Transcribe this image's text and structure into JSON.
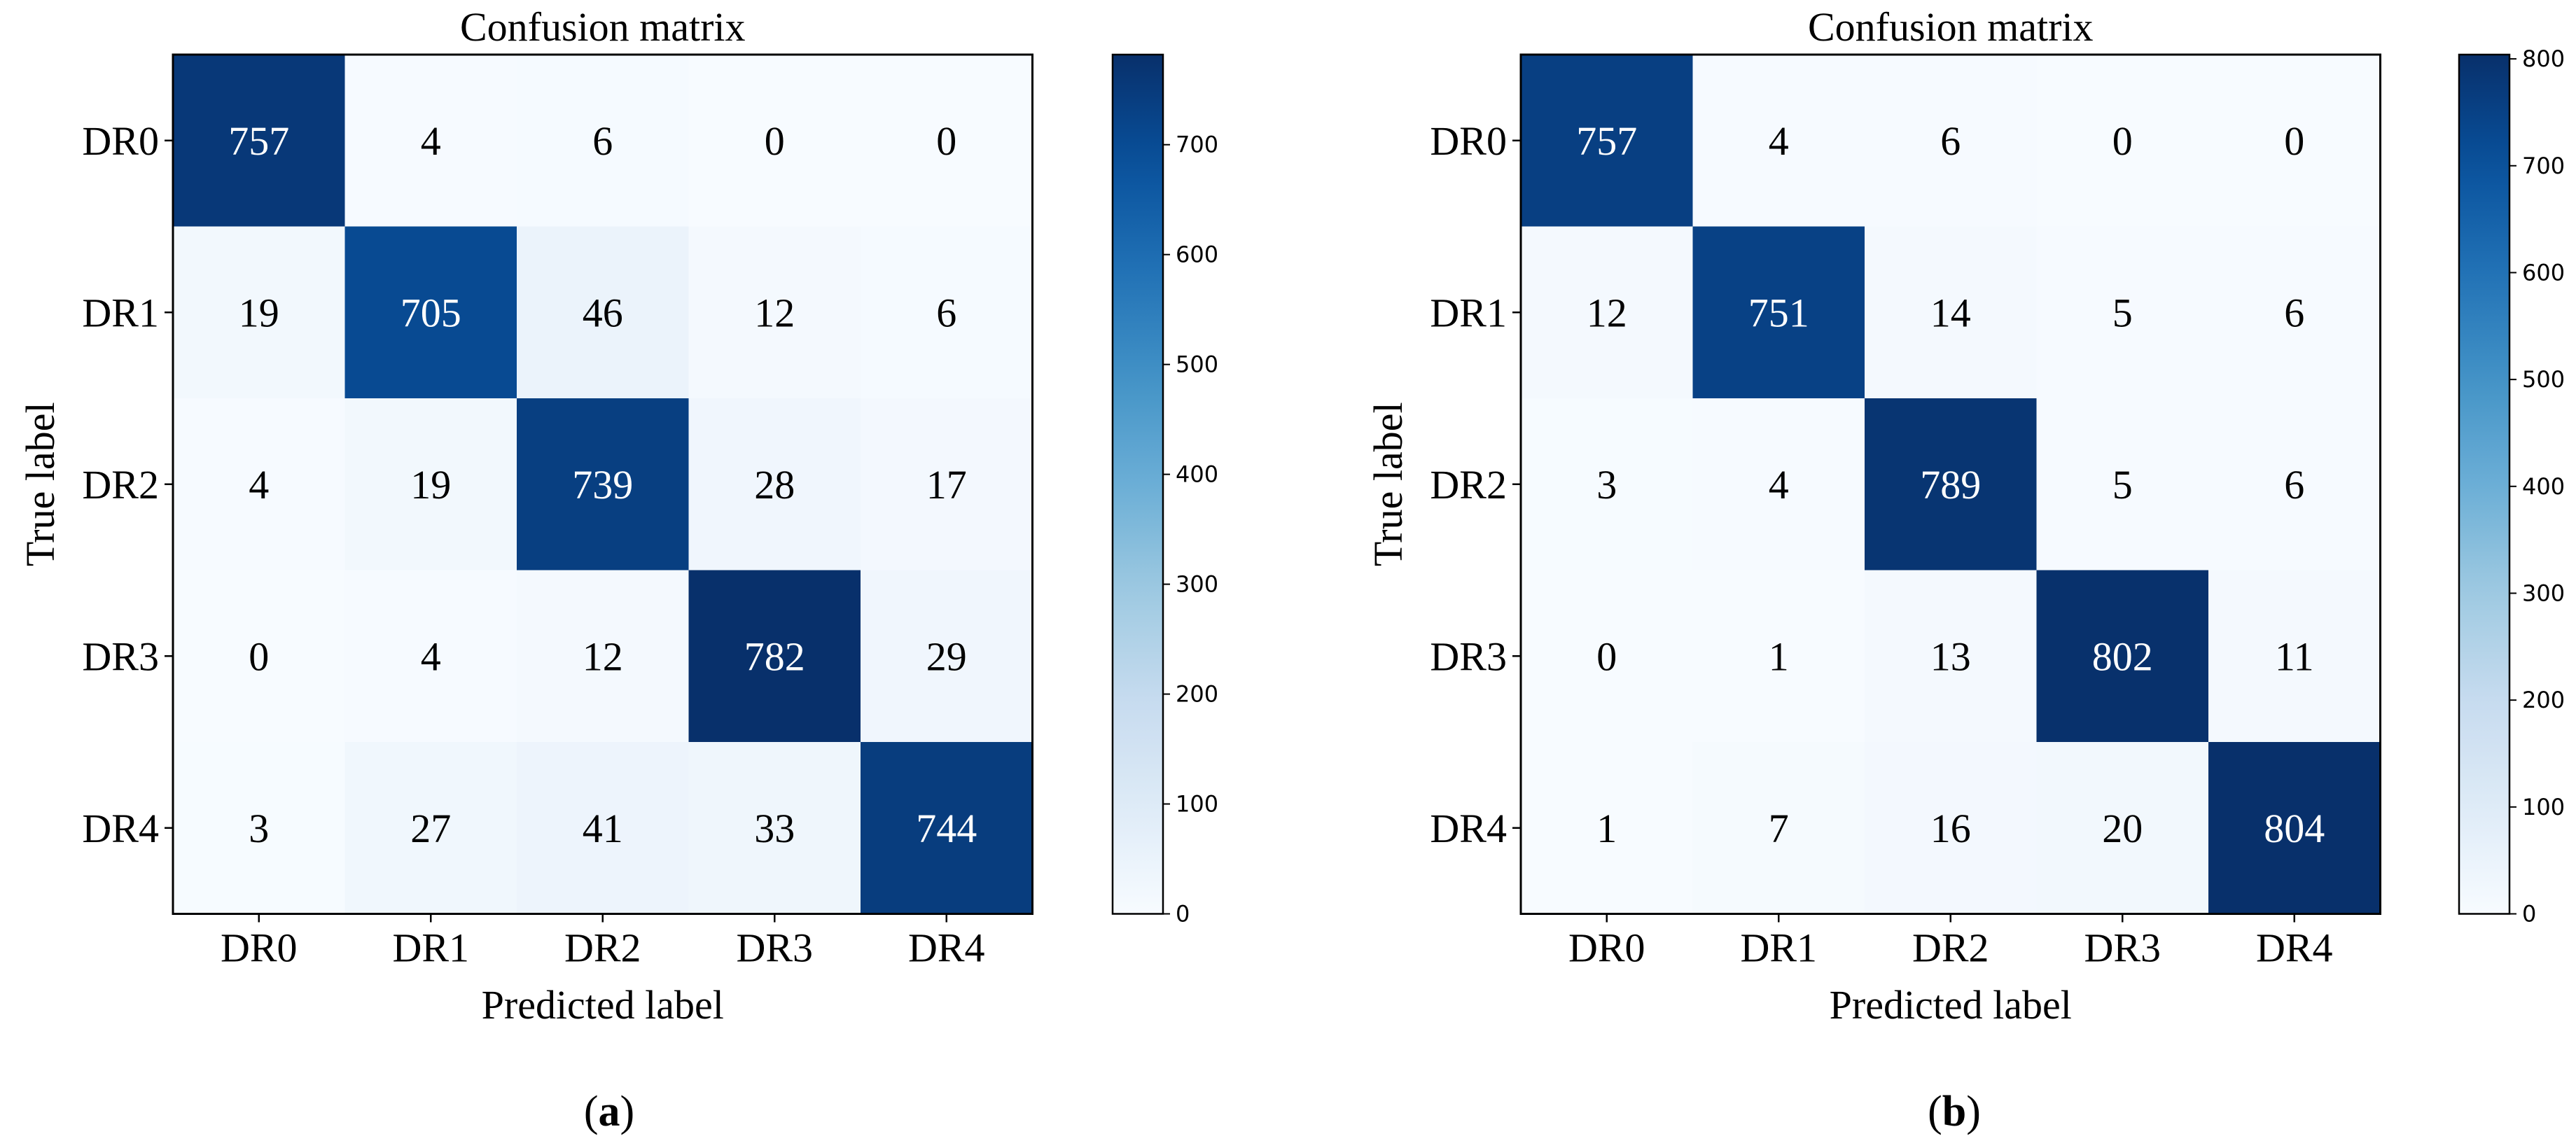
{
  "chart_data": [
    {
      "type": "heatmap",
      "title": "Confusion matrix",
      "xlabel": "Predicted label",
      "ylabel": "True label",
      "x_categories": [
        "DR0",
        "DR1",
        "DR2",
        "DR3",
        "DR4"
      ],
      "y_categories": [
        "DR0",
        "DR1",
        "DR2",
        "DR3",
        "DR4"
      ],
      "matrix": [
        [
          757,
          4,
          6,
          0,
          0
        ],
        [
          19,
          705,
          46,
          12,
          6
        ],
        [
          4,
          19,
          739,
          28,
          17
        ],
        [
          0,
          4,
          12,
          782,
          29
        ],
        [
          3,
          27,
          41,
          33,
          744
        ]
      ],
      "colorbar": {
        "range": [
          0,
          782
        ],
        "ticks": [
          0,
          100,
          200,
          300,
          400,
          500,
          600,
          700
        ]
      },
      "colormap": "Blues",
      "caption_letter": "a"
    },
    {
      "type": "heatmap",
      "title": "Confusion matrix",
      "xlabel": "Predicted label",
      "ylabel": "True label",
      "x_categories": [
        "DR0",
        "DR1",
        "DR2",
        "DR3",
        "DR4"
      ],
      "y_categories": [
        "DR0",
        "DR1",
        "DR2",
        "DR3",
        "DR4"
      ],
      "matrix": [
        [
          757,
          4,
          6,
          0,
          0
        ],
        [
          12,
          751,
          14,
          5,
          6
        ],
        [
          3,
          4,
          789,
          5,
          6
        ],
        [
          0,
          1,
          13,
          802,
          11
        ],
        [
          1,
          7,
          16,
          20,
          804
        ]
      ],
      "colorbar": {
        "range": [
          0,
          804
        ],
        "ticks": [
          0,
          100,
          200,
          300,
          400,
          500,
          600,
          700,
          800
        ]
      },
      "colormap": "Blues",
      "caption_letter": "b"
    }
  ]
}
